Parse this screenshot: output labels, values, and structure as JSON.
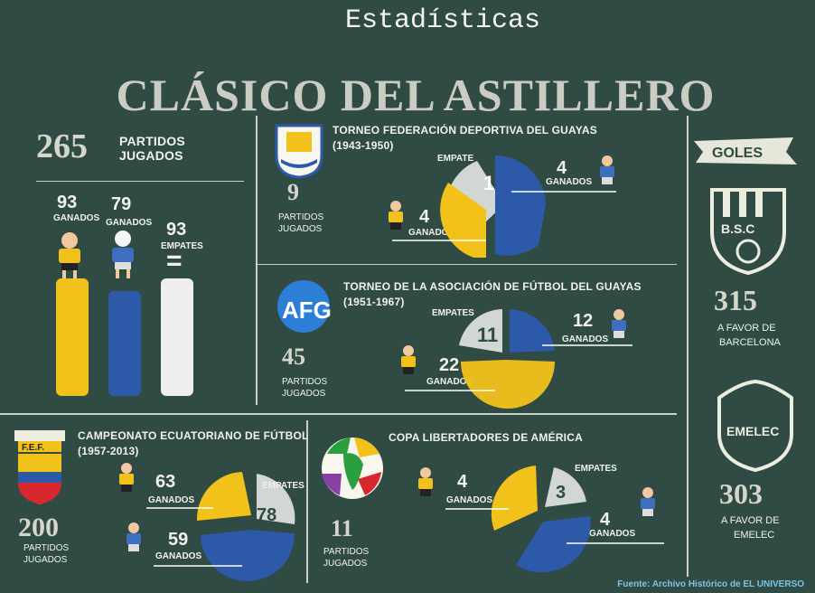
{
  "header": {
    "subtitle": "Estadísticas",
    "title": "CLÁSICO DEL ASTILLERO"
  },
  "summary": {
    "total": "265",
    "total_label_1": "PARTIDOS",
    "total_label_2": "JUGADOS",
    "barcelona_num": "93",
    "barcelona_label": "GANADOS",
    "emelec_num": "79",
    "emelec_label": "GANADOS",
    "draws_num": "93",
    "draws_label": "EMPATES",
    "equals": "="
  },
  "federacion": {
    "title": "TORNEO FEDERACIÓN DEPORTIVA DEL GUAYAS",
    "years": "(1943-1950)",
    "matches": "9",
    "matches_label_1": "PARTIDOS",
    "matches_label_2": "JUGADOS",
    "draw_label": "EMPATE",
    "draw_num": "1",
    "emelec_num": "4",
    "emelec_label": "GANADOS",
    "barcelona_num": "4",
    "barcelona_label": "GANADOS"
  },
  "afg": {
    "title": "TORNEO DE LA ASOCIACIÓN DE FÚTBOL DEL GUAYAS",
    "years": "(1951-1967)",
    "logo": "AFG",
    "matches": "45",
    "matches_label_1": "PARTIDOS",
    "matches_label_2": "JUGADOS",
    "draw_label": "EMPATES",
    "draw_num": "11",
    "emelec_num": "12",
    "emelec_label": "GANADOS",
    "barcelona_num": "22",
    "barcelona_label": "GANADOS"
  },
  "campeonato": {
    "title": "CAMPEONATO ECUATORIANO DE FÚTBOL",
    "years": "(1957-2013)",
    "logo": "F.E.F.",
    "matches": "200",
    "matches_label_1": "PARTIDOS",
    "matches_label_2": "JUGADOS",
    "draw_label": "EMPATES",
    "draw_num": "78",
    "barcelona_num": "63",
    "barcelona_label": "GANADOS",
    "emelec_num": "59",
    "emelec_label": "GANADOS"
  },
  "libertadores": {
    "title": "COPA LIBERTADORES DE AMÉRICA",
    "matches": "11",
    "matches_label_1": "PARTIDOS",
    "matches_label_2": "JUGADOS",
    "draw_label": "EMPATES",
    "draw_num": "3",
    "barcelona_num": "4",
    "barcelona_label": "GANADOS",
    "emelec_num": "4",
    "emelec_label": "GANADOS"
  },
  "goles": {
    "title": "GOLES",
    "bsc_text": "B.S.C",
    "barcelona_goals": "315",
    "barcelona_label_1": "A FAVOR DE",
    "barcelona_label_2": "BARCELONA",
    "emelec_text": "EMELEC",
    "emelec_goals": "303",
    "emelec_label_1": "A FAVOR DE",
    "emelec_label_2": "EMELEC"
  },
  "footer": "Fuente: Archivo Histórico de EL UNIVERSO",
  "colors": {
    "yellow": "#f2c21a",
    "blue": "#2c5aa8",
    "white": "#eeeeee",
    "bg": "#2f4b43"
  }
}
